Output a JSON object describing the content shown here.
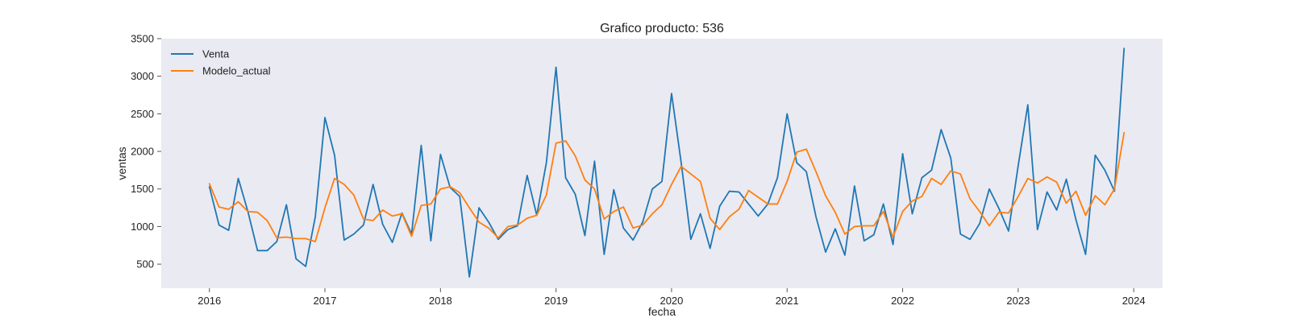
{
  "chart_data": {
    "type": "line",
    "title": "Grafico producto: 536",
    "xlabel": "fecha",
    "ylabel": "ventas",
    "x_start": "2016-01",
    "x_end": "2023-12",
    "xlim": [
      "2015-08",
      "2024-04"
    ],
    "ylim": [
      180,
      3500
    ],
    "x_ticks": [
      "2016",
      "2017",
      "2018",
      "2019",
      "2020",
      "2021",
      "2022",
      "2023",
      "2024"
    ],
    "y_ticks": [
      500,
      1000,
      1500,
      2000,
      2500,
      3000,
      3500
    ],
    "grid": false,
    "legend_position": "top-left",
    "background_color": "#eaeaf2",
    "series": [
      {
        "name": "Venta",
        "color": "#1f77b4",
        "values": [
          1530,
          1020,
          950,
          1640,
          1200,
          680,
          680,
          800,
          1290,
          570,
          470,
          1130,
          2450,
          1950,
          820,
          900,
          1020,
          1560,
          1030,
          790,
          1180,
          900,
          2080,
          810,
          1960,
          1520,
          1400,
          330,
          1250,
          1060,
          830,
          960,
          1010,
          1680,
          1150,
          1850,
          3120,
          1650,
          1430,
          880,
          1870,
          630,
          1490,
          980,
          820,
          1060,
          1500,
          1600,
          2770,
          1850,
          830,
          1170,
          710,
          1270,
          1470,
          1460,
          1300,
          1140,
          1300,
          1650,
          2500,
          1850,
          1730,
          1130,
          660,
          970,
          620,
          1540,
          810,
          890,
          1300,
          760,
          1970,
          1170,
          1650,
          1750,
          2290,
          1910,
          900,
          830,
          1040,
          1500,
          1240,
          940,
          1810,
          2620,
          960,
          1460,
          1220,
          1630,
          1090,
          630,
          1950,
          1750,
          1470,
          3370
        ]
      },
      {
        "name": "Modelo_actual",
        "color": "#ff7f0e",
        "values": [
          1570,
          1260,
          1230,
          1330,
          1200,
          1190,
          1080,
          850,
          860,
          840,
          840,
          800,
          1250,
          1640,
          1560,
          1420,
          1100,
          1080,
          1220,
          1140,
          1170,
          870,
          1280,
          1300,
          1500,
          1530,
          1450,
          1250,
          1060,
          980,
          850,
          1000,
          1020,
          1110,
          1150,
          1420,
          2110,
          2140,
          1940,
          1620,
          1500,
          1100,
          1200,
          1260,
          980,
          1020,
          1170,
          1290,
          1560,
          1800,
          1700,
          1600,
          1110,
          960,
          1130,
          1230,
          1480,
          1390,
          1300,
          1300,
          1600,
          1990,
          2030,
          1730,
          1410,
          1190,
          900,
          1000,
          1010,
          1010,
          1200,
          860,
          1200,
          1340,
          1400,
          1640,
          1560,
          1740,
          1700,
          1370,
          1200,
          1010,
          1190,
          1180,
          1400,
          1640,
          1580,
          1660,
          1590,
          1310,
          1470,
          1150,
          1410,
          1290,
          1500,
          2250
        ]
      }
    ]
  }
}
